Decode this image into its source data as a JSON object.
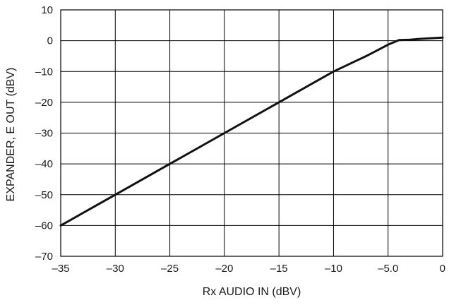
{
  "chart_data": {
    "type": "line",
    "xlabel": "Rx AUDIO IN (dBV)",
    "ylabel": "EXPANDER, E OUT (dBV)",
    "xlim": [
      -35,
      0
    ],
    "ylim": [
      -70,
      10
    ],
    "grid": true,
    "x_ticks": [
      -35,
      -30,
      -25,
      -20,
      -15,
      -10,
      -5,
      0
    ],
    "x_tick_labels": [
      "–35",
      "–30",
      "–25",
      "–20",
      "–15",
      "–10",
      "–5.0",
      "0"
    ],
    "y_ticks": [
      10,
      0,
      -10,
      -20,
      -30,
      -40,
      -50,
      -60,
      -70
    ],
    "y_tick_labels": [
      "10",
      "0",
      "–10",
      "–20",
      "–30",
      "–40",
      "–50",
      "–60",
      "–70"
    ],
    "series": [
      {
        "x": [
          -35,
          -30,
          -25,
          -20,
          -15,
          -10,
          -7,
          -5,
          -4,
          -3,
          -2,
          -1,
          0
        ],
        "y": [
          -60,
          -50,
          -40,
          -30,
          -20,
          -10,
          -5,
          -1.3,
          0.2,
          0.3,
          0.6,
          0.8,
          1
        ]
      }
    ]
  }
}
